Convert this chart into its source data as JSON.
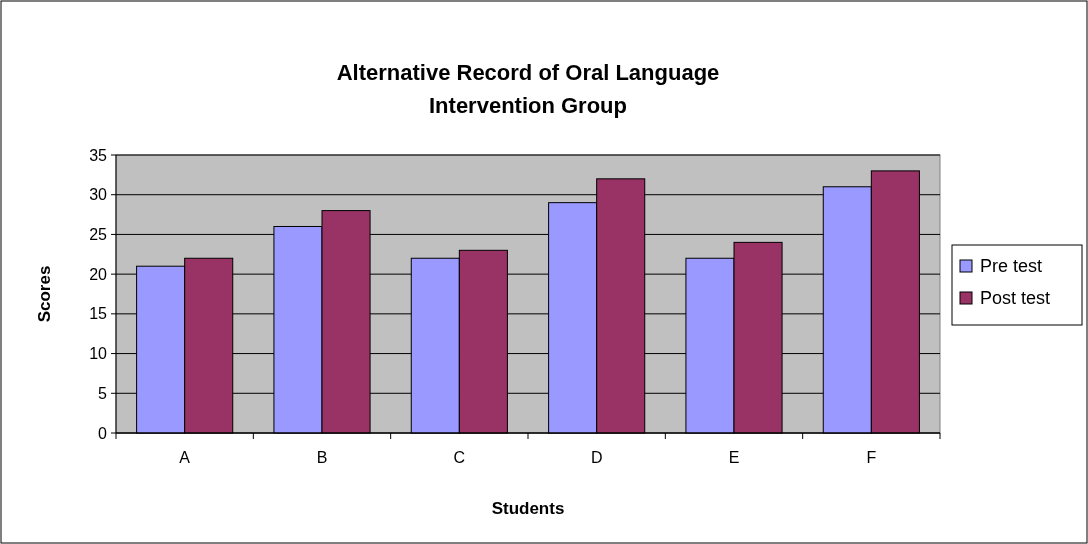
{
  "chart_data": {
    "type": "bar",
    "title": "Alternative Record of Oral Language\nIntervention Group",
    "xlabel": "Students",
    "ylabel": "Scores",
    "categories": [
      "A",
      "B",
      "C",
      "D",
      "E",
      "F"
    ],
    "series": [
      {
        "name": "Pre test",
        "color": "#9999ff",
        "values": [
          21,
          26,
          22,
          29,
          22,
          31
        ]
      },
      {
        "name": "Post test",
        "color": "#993366",
        "values": [
          22,
          28,
          23,
          32,
          24,
          33
        ]
      }
    ],
    "ylim": [
      0,
      35
    ],
    "yticks": [
      0,
      5,
      10,
      15,
      20,
      25,
      30,
      35
    ],
    "grid": "y",
    "legend": "right"
  }
}
